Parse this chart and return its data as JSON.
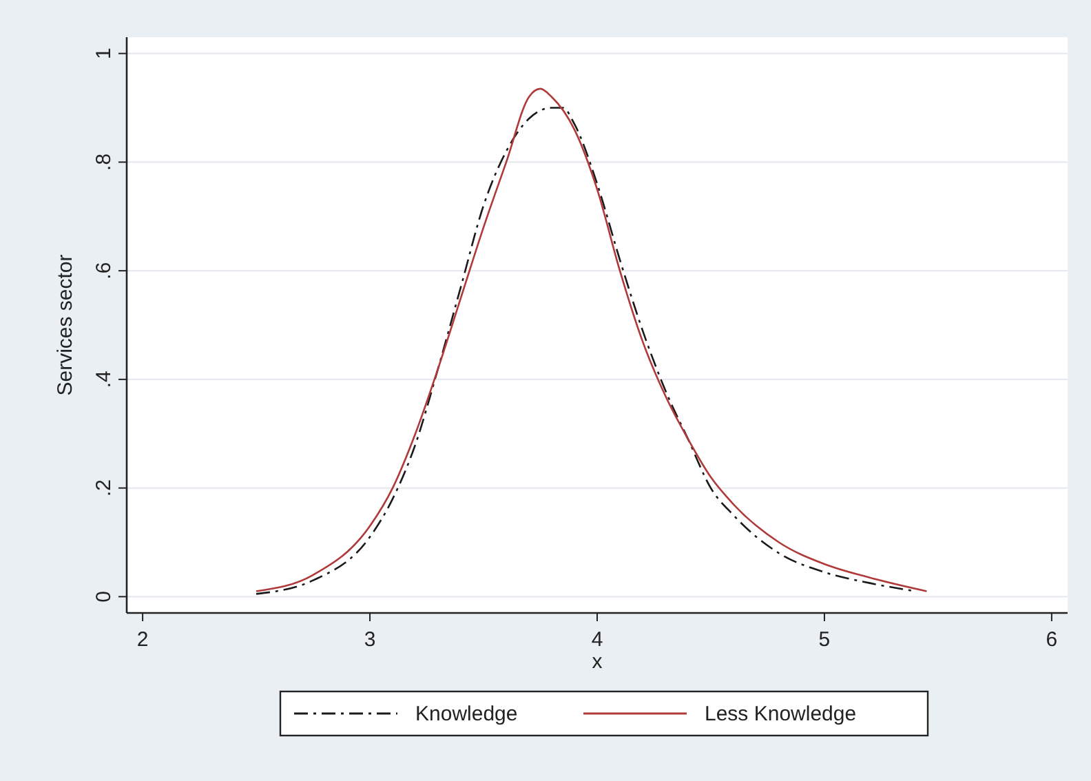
{
  "chart_data": {
    "type": "line",
    "xlabel": "x",
    "ylabel": "Services sector",
    "xlim": [
      1.93,
      6.07
    ],
    "ylim": [
      -0.03,
      1.03
    ],
    "xticks": [
      2,
      3,
      4,
      5,
      6
    ],
    "yticks": [
      {
        "value": 0,
        "label": "0"
      },
      {
        "value": 0.2,
        "label": ".2"
      },
      {
        "value": 0.4,
        "label": ".4"
      },
      {
        "value": 0.6,
        "label": ".6"
      },
      {
        "value": 0.8,
        "label": ".8"
      },
      {
        "value": 1,
        "label": "1"
      }
    ],
    "grid": "y",
    "legend": "bottom",
    "series": [
      {
        "name": "Knowledge",
        "color": "#1a1a1a",
        "line_style": "dashed",
        "x": [
          2.5,
          2.75,
          3.0,
          3.1,
          3.2,
          3.3,
          3.4,
          3.5,
          3.6,
          3.7,
          3.8,
          3.85,
          3.9,
          4.0,
          4.1,
          4.2,
          4.3,
          4.4,
          4.5,
          4.6,
          4.8,
          5.0,
          5.2,
          5.4
        ],
        "values": [
          0.005,
          0.03,
          0.11,
          0.18,
          0.28,
          0.42,
          0.57,
          0.72,
          0.82,
          0.88,
          0.9,
          0.9,
          0.87,
          0.76,
          0.62,
          0.49,
          0.38,
          0.29,
          0.2,
          0.15,
          0.08,
          0.045,
          0.025,
          0.01
        ]
      },
      {
        "name": "Less Knowledge",
        "color": "#b03a3a",
        "line_style": "solid",
        "x": [
          2.5,
          2.75,
          3.0,
          3.1,
          3.2,
          3.3,
          3.4,
          3.5,
          3.6,
          3.7,
          3.75,
          3.8,
          3.9,
          4.0,
          4.1,
          4.2,
          4.3,
          4.4,
          4.5,
          4.6,
          4.8,
          5.0,
          5.2,
          5.45
        ],
        "values": [
          0.01,
          0.04,
          0.13,
          0.2,
          0.3,
          0.42,
          0.55,
          0.68,
          0.8,
          0.92,
          0.935,
          0.92,
          0.86,
          0.75,
          0.6,
          0.47,
          0.37,
          0.29,
          0.22,
          0.17,
          0.1,
          0.06,
          0.035,
          0.01
        ]
      }
    ]
  }
}
